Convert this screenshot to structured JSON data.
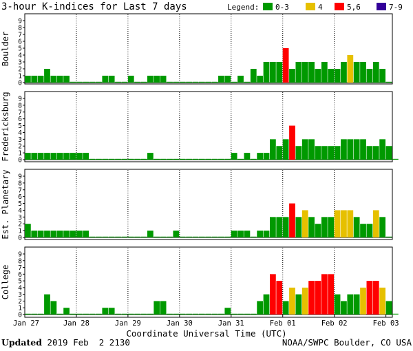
{
  "title": "3-hour K-indices for Last 7 days",
  "legend": {
    "label": "Legend:",
    "items": [
      {
        "label": "0-3",
        "color": "#009900"
      },
      {
        "label": "4",
        "color": "#e6c000"
      },
      {
        "label": "5,6",
        "color": "#ff0000"
      },
      {
        "label": "7-9",
        "color": "#330099"
      }
    ]
  },
  "footer": {
    "updated_label": "Updated",
    "updated_value": "2019 Feb  2 2130",
    "source": "NOAA/SWPC Boulder, CO USA"
  },
  "chart_data": [
    {
      "type": "bar",
      "title": "Boulder",
      "ylim": [
        0,
        9
      ],
      "yticks": [
        "0",
        "1",
        "2",
        "3",
        "4",
        "5",
        "6",
        "7",
        "8",
        "9"
      ],
      "values": [
        1,
        1,
        1,
        2,
        1,
        1,
        1,
        0,
        0,
        0,
        0,
        0,
        1,
        1,
        0,
        0,
        1,
        0,
        0,
        1,
        1,
        1,
        0,
        0,
        0,
        0,
        0,
        0,
        0,
        0,
        1,
        1,
        0,
        1,
        0,
        2,
        1,
        3,
        3,
        3,
        5,
        2,
        3,
        3,
        3,
        2,
        3,
        2,
        2,
        3,
        4,
        3,
        3,
        2,
        3,
        2,
        0
      ]
    },
    {
      "type": "bar",
      "title": "Fredericksburg",
      "ylim": [
        0,
        9
      ],
      "yticks": [
        "0",
        "1",
        "2",
        "3",
        "4",
        "5",
        "6",
        "7",
        "8",
        "9"
      ],
      "values": [
        1,
        1,
        1,
        1,
        1,
        1,
        1,
        1,
        1,
        1,
        0,
        0,
        0,
        0,
        0,
        0,
        0,
        0,
        0,
        1,
        0,
        0,
        0,
        0,
        0,
        0,
        0,
        0,
        0,
        0,
        0,
        0,
        1,
        0,
        1,
        0,
        1,
        1,
        3,
        2,
        3,
        5,
        2,
        3,
        3,
        2,
        2,
        2,
        2,
        3,
        3,
        3,
        3,
        2,
        2,
        3,
        2,
        0
      ]
    },
    {
      "type": "bar",
      "title": "Est. Planetary",
      "ylim": [
        0,
        9
      ],
      "yticks": [
        "0",
        "1",
        "2",
        "3",
        "4",
        "5",
        "6",
        "7",
        "8",
        "9"
      ],
      "values": [
        2,
        1,
        1,
        1,
        1,
        1,
        1,
        1,
        1,
        1,
        0,
        0,
        0,
        0,
        0,
        0,
        0,
        0,
        0,
        1,
        0,
        0,
        0,
        1,
        0,
        0,
        0,
        0,
        0,
        0,
        0,
        0,
        1,
        1,
        1,
        0,
        1,
        1,
        3,
        3,
        3,
        5,
        3,
        4,
        3,
        2,
        3,
        3,
        4,
        4,
        4,
        3,
        2,
        2,
        4,
        3,
        0
      ]
    },
    {
      "type": "bar",
      "title": "College",
      "ylim": [
        0,
        9
      ],
      "yticks": [
        "0",
        "1",
        "2",
        "3",
        "4",
        "5",
        "6",
        "7",
        "8",
        "9"
      ],
      "values": [
        0,
        0,
        0,
        3,
        2,
        0,
        1,
        0,
        0,
        0,
        0,
        0,
        1,
        1,
        0,
        0,
        0,
        0,
        0,
        0,
        2,
        2,
        0,
        0,
        0,
        0,
        0,
        0,
        0,
        0,
        0,
        1,
        0,
        0,
        0,
        0,
        2,
        3,
        6,
        5,
        2,
        4,
        3,
        4,
        5,
        5,
        6,
        6,
        3,
        2,
        3,
        3,
        4,
        5,
        5,
        4,
        2,
        0
      ]
    }
  ],
  "x_axis": {
    "label": "Coordinate Universal Time (UTC)",
    "ticks": [
      "Jan 27",
      "Jan 28",
      "Jan 29",
      "Jan 30",
      "Jan 31",
      "Feb 01",
      "Feb 02",
      "Feb 03"
    ]
  }
}
